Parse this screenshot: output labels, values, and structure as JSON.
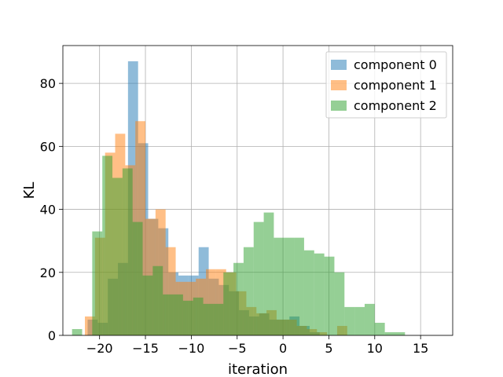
{
  "chart_data": {
    "type": "bar",
    "subtype": "overlaid histogram",
    "xlabel": "iteration",
    "ylabel": "KL",
    "xlim": [
      -24.0,
      18.5
    ],
    "ylim": [
      0,
      92
    ],
    "xticks": [
      -20,
      -15,
      -10,
      -5,
      0,
      5,
      10,
      15
    ],
    "xtick_labels": [
      "−20",
      "−15",
      "−10",
      "−5",
      "0",
      "5",
      "10",
      "15"
    ],
    "yticks": [
      0,
      20,
      40,
      60,
      80
    ],
    "ytick_labels": [
      "0",
      "20",
      "40",
      "60",
      "80"
    ],
    "grid": true,
    "legend_position": "upper right",
    "bar_opacity": 0.5,
    "series": [
      {
        "name": "component 0",
        "color": "#1f77b4",
        "bin_start": -21.3,
        "bin_width": 1.1,
        "values": [
          5,
          4,
          18,
          23,
          87,
          61,
          37,
          34,
          20,
          19,
          19,
          28,
          18,
          16,
          14,
          8,
          6,
          7,
          5,
          5,
          6,
          3,
          1
        ]
      },
      {
        "name": "component 1",
        "color": "#ff7f0e",
        "bin_start": -21.6,
        "bin_width": 1.1,
        "values": [
          6,
          31,
          58,
          64,
          54,
          68,
          37,
          40,
          28,
          17,
          17,
          18,
          21,
          21,
          20,
          14,
          9,
          7,
          8,
          5,
          5,
          3,
          2,
          1,
          0,
          3
        ]
      },
      {
        "name": "component 2",
        "color": "#2ca02c",
        "bin_start": -23.0,
        "bin_width": 1.1,
        "values": [
          2,
          0,
          33,
          57,
          50,
          53,
          36,
          19,
          22,
          13,
          13,
          11,
          12,
          10,
          10,
          20,
          23,
          28,
          36,
          39,
          31,
          31,
          31,
          27,
          26,
          25,
          20,
          9,
          9,
          10,
          4,
          1,
          1
        ]
      }
    ]
  }
}
